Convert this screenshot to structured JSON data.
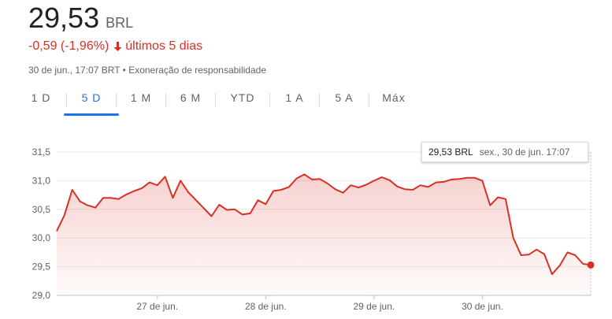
{
  "header": {
    "price": "29,53",
    "currency": "BRL",
    "change": "-0,59 (-1,96%)",
    "change_arrow": "arrow-down-icon",
    "period": "últimos 5 dias",
    "timestamp": "30 de jun., 17:07 BRT",
    "separator": "•",
    "disclaimer": "Exoneração de responsabilidade",
    "negative_color": "#d93025"
  },
  "tabs": [
    {
      "label": "1 D",
      "active": false
    },
    {
      "label": "5 D",
      "active": true
    },
    {
      "label": "1 M",
      "active": false
    },
    {
      "label": "6 M",
      "active": false
    },
    {
      "label": "YTD",
      "active": false
    },
    {
      "label": "1 A",
      "active": false
    },
    {
      "label": "5 A",
      "active": false
    },
    {
      "label": "Máx",
      "active": false
    }
  ],
  "tooltip": {
    "value": "29,53 BRL",
    "time": "sex., 30 de jun. 17:07"
  },
  "chart_data": {
    "type": "area",
    "title": "",
    "xlabel": "",
    "ylabel": "",
    "ylim": [
      29.0,
      31.5
    ],
    "y_ticks": [
      "29,0",
      "29,5",
      "30,0",
      "30,5",
      "31,0",
      "31,5"
    ],
    "y_tick_values": [
      29.0,
      29.5,
      30.0,
      30.5,
      31.0,
      31.5
    ],
    "x_ticks": [
      "27 de jun.",
      "28 de jun.",
      "29 de jun.",
      "30 de jun."
    ],
    "x_tick_index": [
      13,
      27,
      41,
      55
    ],
    "grid": true,
    "line_color": "#d93025",
    "series": [
      {
        "values": [
          30.12,
          30.4,
          30.84,
          30.64,
          30.57,
          30.53,
          30.7,
          30.7,
          30.68,
          30.76,
          30.82,
          30.87,
          30.97,
          30.92,
          31.07,
          30.7,
          31.0,
          30.8,
          30.66,
          30.52,
          30.38,
          30.58,
          30.49,
          30.5,
          30.41,
          30.43,
          30.66,
          30.59,
          30.82,
          30.84,
          30.89,
          31.04,
          31.11,
          31.02,
          31.03,
          30.95,
          30.85,
          30.79,
          30.92,
          30.88,
          30.93,
          31.0,
          31.06,
          31.01,
          30.9,
          30.85,
          30.84,
          30.92,
          30.89,
          30.97,
          30.98,
          31.02,
          31.03,
          31.05,
          31.05,
          31.0,
          30.57,
          30.71,
          30.68,
          30.0,
          29.7,
          29.71,
          29.8,
          29.72,
          29.37,
          29.52,
          29.75,
          29.7,
          29.55,
          29.53
        ]
      }
    ]
  }
}
